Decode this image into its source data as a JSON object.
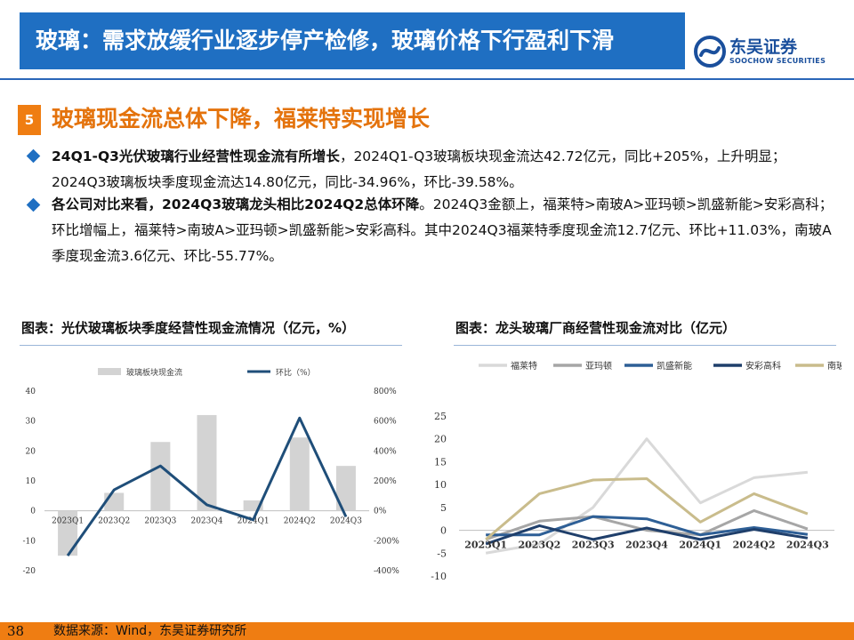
{
  "header": {
    "title": "玻璃：需求放缓行业逐步停产检修，玻璃价格下行盈利下滑",
    "brand_cn": "东吴证券",
    "brand_en": "SOOCHOW SECURITIES",
    "accent": "#1f6fc2"
  },
  "section": {
    "number": "5",
    "title": "玻璃现金流总体下降，福莱特实现增长",
    "accent": "#ef7d12"
  },
  "bullets": [
    {
      "bold": "24Q1-Q3光伏玻璃行业经营性现金流有所增长",
      "text": "，2024Q1-Q3玻璃板块现金流达42.72亿元，同比+205%，上升明显；2024Q3玻璃板块季度现金流达14.80亿元，同比-34.96%，环比-39.58%。"
    },
    {
      "bold": "各公司对比来看，2024Q3玻璃龙头相比2024Q2总体环降",
      "text": "。2024Q3金额上，福莱特>南玻A>亚玛顿>凯盛新能>安彩高科；环比增幅上，福莱特>南玻A>亚玛顿>凯盛新能>安彩高科。其中2024Q3福莱特季度现金流12.7亿元、环比+11.03%，南玻A季度现金流3.6亿元、环比-55.77%。"
    }
  ],
  "chart_titles": {
    "left": "图表：光伏玻璃板块季度经营性现金流情况（亿元，%）",
    "right": "图表：龙头玻璃厂商经营性现金流对比（亿元）"
  },
  "chart_data": [
    {
      "type": "bar+line",
      "title": "",
      "categories": [
        "2023Q1",
        "2023Q2",
        "2023Q3",
        "2023Q4",
        "2024Q1",
        "2024Q2",
        "2024Q3"
      ],
      "series": [
        {
          "name": "玻璃板块现金流",
          "type": "bar",
          "axis": "left",
          "color": "#d3d3d3",
          "values": [
            -15,
            6,
            23,
            32,
            3.5,
            24.5,
            15
          ]
        },
        {
          "name": "环比（%）",
          "type": "line",
          "axis": "right",
          "color": "#1f4e79",
          "values": [
            -300,
            140,
            300,
            40,
            -60,
            620,
            -40
          ]
        }
      ],
      "left_axis": {
        "min": -20,
        "max": 40,
        "ticks": [
          "40",
          "30",
          "20",
          "10",
          "0",
          "-10",
          "-20"
        ]
      },
      "right_axis": {
        "min": -400,
        "max": 800,
        "ticks": [
          "800%",
          "600%",
          "400%",
          "200%",
          "0%",
          "-200%",
          "-400%"
        ]
      },
      "legend_position": "top",
      "grid": false
    },
    {
      "type": "line",
      "title": "",
      "categories": [
        "2023Q1",
        "2023Q2",
        "2023Q3",
        "2023Q4",
        "2024Q1",
        "2024Q2",
        "2024Q3"
      ],
      "series": [
        {
          "name": "福莱特",
          "color": "#d9d9d9",
          "values": [
            -5,
            -3,
            5,
            20,
            6,
            11.5,
            12.7
          ]
        },
        {
          "name": "亚玛顿",
          "color": "#a6a6a6",
          "values": [
            -2,
            2,
            3,
            0,
            -1,
            4.3,
            0.3
          ]
        },
        {
          "name": "凯盛新能",
          "color": "#2e5f96",
          "values": [
            -1,
            -1,
            3,
            2.5,
            -1,
            0.6,
            -0.9
          ]
        },
        {
          "name": "安彩高科",
          "color": "#1f3f6b",
          "values": [
            -3,
            1,
            -2,
            0.5,
            -2,
            0.2,
            -1.7
          ]
        },
        {
          "name": "南玻A",
          "color": "#c9bc8c",
          "values": [
            -2,
            8,
            11,
            11.3,
            1.8,
            8,
            3.6
          ]
        }
      ],
      "y_axis": {
        "min": -10,
        "max": 25,
        "ticks": [
          "25",
          "20",
          "15",
          "10",
          "5",
          "0",
          "-5",
          "-10"
        ]
      },
      "legend_position": "top",
      "grid": false
    }
  ],
  "footer": {
    "page": "38",
    "source": "数据来源：Wind，东吴证券研究所",
    "accent": "#ef7d12"
  }
}
